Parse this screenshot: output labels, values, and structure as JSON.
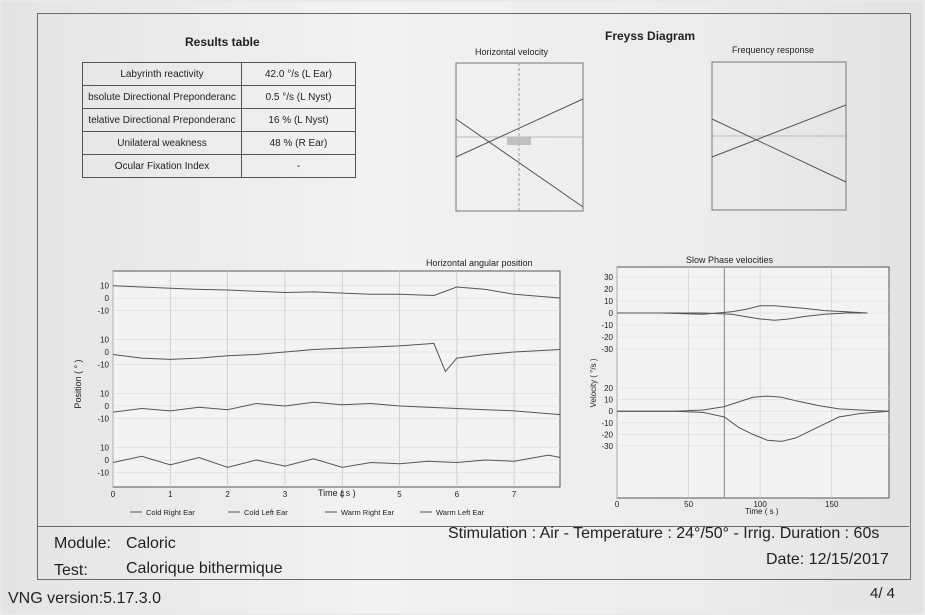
{
  "results_table": {
    "title": "Results table",
    "rows": [
      {
        "label": "Labyrinth reactivity",
        "value": "42.0 °/s (L Ear)"
      },
      {
        "label": "bsolute Directional Preponderanc",
        "value": "0.5 °/s (L Nyst)"
      },
      {
        "label": "telative Directional Preponderanc",
        "value": "16 % (L Nyst)"
      },
      {
        "label": "Unilateral weakness",
        "value": "48 % (R Ear)"
      },
      {
        "label": "Ocular Fixation Index",
        "value": "-"
      }
    ]
  },
  "freyss": {
    "title": "Freyss Diagram",
    "horizontal_velocity_title": "Horizontal velocity",
    "frequency_response_title": "Frequency response"
  },
  "chart_data": [
    {
      "type": "line",
      "title": "Horizontal angular position",
      "xlabel": "Time ( s )",
      "ylabel": "Position ( ° )",
      "x_ticks": [
        "0",
        "1",
        "2",
        "3",
        "4",
        "5",
        "6",
        "7"
      ],
      "xlim": [
        0,
        7.8
      ],
      "tracks": [
        {
          "ticks": [
            "10",
            "0",
            "-10"
          ],
          "samples": [
            [
              0,
              10
            ],
            [
              0.5,
              9
            ],
            [
              1,
              8
            ],
            [
              1.5,
              7
            ],
            [
              2,
              6.5
            ],
            [
              2.5,
              5.5
            ],
            [
              3,
              4.5
            ],
            [
              3.5,
              5
            ],
            [
              4,
              4
            ],
            [
              4.5,
              3
            ],
            [
              5,
              3
            ],
            [
              5.6,
              2
            ],
            [
              6,
              9
            ],
            [
              6.5,
              7
            ],
            [
              7,
              3
            ],
            [
              7.8,
              0
            ]
          ]
        },
        {
          "ticks": [
            "10",
            "0",
            "-10"
          ],
          "samples": [
            [
              0,
              -2
            ],
            [
              0.5,
              -5
            ],
            [
              1,
              -6
            ],
            [
              1.5,
              -5
            ],
            [
              2,
              -3
            ],
            [
              2.5,
              -2
            ],
            [
              3,
              0
            ],
            [
              3.5,
              2
            ],
            [
              4,
              3
            ],
            [
              4.5,
              4
            ],
            [
              5,
              5
            ],
            [
              5.6,
              7
            ],
            [
              5.8,
              -16
            ],
            [
              6,
              -5
            ],
            [
              6.5,
              -2
            ],
            [
              7,
              0
            ],
            [
              7.8,
              2
            ]
          ]
        },
        {
          "ticks": [
            "10",
            "0",
            "-10"
          ],
          "samples": [
            [
              0,
              -5
            ],
            [
              0.5,
              -2
            ],
            [
              1,
              -4
            ],
            [
              1.5,
              -1
            ],
            [
              2,
              -3
            ],
            [
              2.5,
              2
            ],
            [
              3,
              0
            ],
            [
              3.5,
              3
            ],
            [
              4,
              1
            ],
            [
              4.5,
              2
            ],
            [
              5,
              0
            ],
            [
              5.5,
              -1
            ],
            [
              6,
              -2
            ],
            [
              6.5,
              -3
            ],
            [
              7,
              -4
            ],
            [
              7.8,
              -7
            ]
          ]
        },
        {
          "ticks": [
            "10",
            "0",
            "-10"
          ],
          "samples": [
            [
              0,
              -2
            ],
            [
              0.5,
              3
            ],
            [
              1,
              -4
            ],
            [
              1.5,
              2
            ],
            [
              2,
              -6
            ],
            [
              2.5,
              0
            ],
            [
              3,
              -5
            ],
            [
              3.5,
              1
            ],
            [
              4,
              -6
            ],
            [
              4.5,
              -2
            ],
            [
              5,
              -3
            ],
            [
              5.5,
              -1
            ],
            [
              6,
              -2
            ],
            [
              6.5,
              0
            ],
            [
              7,
              -1
            ],
            [
              7.6,
              4
            ],
            [
              7.8,
              2
            ]
          ]
        }
      ],
      "legend": [
        "Cold Right Ear",
        "Cold Left Ear",
        "Warm Right Ear",
        "Warm Left Ear"
      ]
    },
    {
      "type": "line",
      "title": "Slow Phase velocities",
      "xlabel": "Time ( s )",
      "ylabel": "Velocity ( °/s )",
      "x_ticks": [
        "0",
        "50",
        "100",
        "150"
      ],
      "xlim": [
        0,
        190
      ],
      "upper": {
        "ticks": [
          "30",
          "20",
          "10",
          "0",
          "-10",
          "-20",
          "-30"
        ],
        "series": [
          {
            "samples": [
              [
                0,
                0
              ],
              [
                30,
                0
              ],
              [
                60,
                -1
              ],
              [
                80,
                1
              ],
              [
                90,
                3
              ],
              [
                100,
                6
              ],
              [
                110,
                6
              ],
              [
                120,
                5
              ],
              [
                130,
                4
              ],
              [
                145,
                2
              ],
              [
                160,
                1
              ],
              [
                175,
                0
              ]
            ]
          },
          {
            "samples": [
              [
                0,
                0
              ],
              [
                30,
                0
              ],
              [
                60,
                0
              ],
              [
                80,
                -1
              ],
              [
                90,
                -3
              ],
              [
                100,
                -5
              ],
              [
                110,
                -6
              ],
              [
                120,
                -5
              ],
              [
                130,
                -3
              ],
              [
                145,
                -1
              ],
              [
                160,
                0
              ],
              [
                175,
                0
              ]
            ]
          }
        ]
      },
      "lower": {
        "ticks": [
          "20",
          "10",
          "0",
          "-10",
          "-20",
          "-30"
        ],
        "series": [
          {
            "samples": [
              [
                0,
                0
              ],
              [
                40,
                0
              ],
              [
                60,
                1
              ],
              [
                75,
                4
              ],
              [
                85,
                8
              ],
              [
                95,
                12
              ],
              [
                105,
                13
              ],
              [
                115,
                12
              ],
              [
                125,
                9
              ],
              [
                140,
                5
              ],
              [
                155,
                2
              ],
              [
                170,
                1
              ],
              [
                190,
                0
              ]
            ]
          },
          {
            "samples": [
              [
                0,
                0
              ],
              [
                40,
                0
              ],
              [
                60,
                -1
              ],
              [
                75,
                -5
              ],
              [
                85,
                -14
              ],
              [
                95,
                -20
              ],
              [
                105,
                -25
              ],
              [
                115,
                -26
              ],
              [
                125,
                -23
              ],
              [
                140,
                -14
              ],
              [
                155,
                -5
              ],
              [
                170,
                -2
              ],
              [
                190,
                0
              ]
            ]
          }
        ]
      }
    }
  ],
  "footer": {
    "module_label": "Module:",
    "module_value": "Caloric",
    "test_label": "Test:",
    "test_value": "Calorique bithermique",
    "stimulation": "Stimulation : Air - Temperature : 24°/50° - Irrig. Duration : 60s",
    "date": "Date: 12/15/2017",
    "page": "4/ 4",
    "version": "VNG version:5.17.3.0"
  }
}
